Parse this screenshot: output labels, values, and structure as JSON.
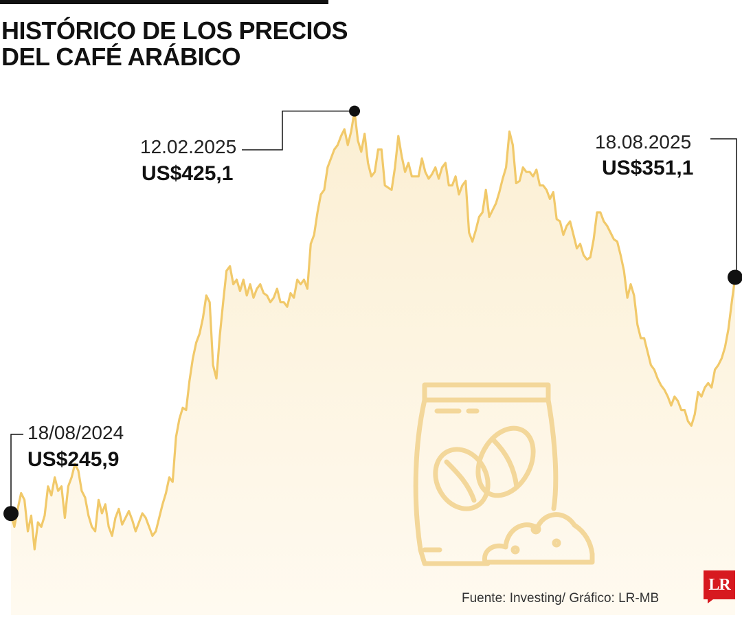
{
  "title": "HISTÓRICO DE LOS PRECIOS DEL CAFÉ ARÁBICO",
  "title_lines": [
    "HISTÓRICO DE LOS PRECIOS",
    "DEL CAFÉ ARÁBICO"
  ],
  "source": "Fuente: Investing/ Gráfico: LR-MB",
  "logo": {
    "text": "LR",
    "color": "#d71920"
  },
  "colors": {
    "line": "#f1c96a",
    "fill_top": "#fbefd3",
    "fill_bottom": "#fffaf0",
    "icon": "#f3d79a",
    "marker": "#111111"
  },
  "icon": "coffee-bag-icon",
  "annotations": {
    "start": {
      "date": "18/08/2024",
      "value": "US$245,9"
    },
    "peak": {
      "date": "12.02.2025",
      "value": "US$425,1"
    },
    "end": {
      "date": "18.08.2025",
      "value": "US$351,1"
    }
  },
  "chart_data": {
    "type": "area",
    "title": "HISTÓRICO DE LOS PRECIOS DEL CAFÉ ARÁBICO",
    "xlabel": "",
    "ylabel": "",
    "x_range": [
      "2024-08-18",
      "2025-08-18"
    ],
    "ylim": [
      212,
      436
    ],
    "grid": false,
    "legend": "none",
    "series": [
      {
        "values": [
          245.9,
          240,
          248,
          255,
          252,
          238,
          245,
          230,
          242,
          240,
          245,
          258,
          254,
          262,
          256,
          258,
          244,
          258,
          262,
          268,
          265,
          256,
          253,
          245,
          240,
          238,
          252,
          246,
          250,
          240,
          236,
          244,
          248,
          241,
          244,
          247,
          243,
          238,
          242,
          246,
          244,
          240,
          236,
          238,
          244,
          250,
          255,
          262,
          260,
          280,
          288,
          293,
          292,
          305,
          315,
          322,
          326,
          333,
          343,
          340,
          312,
          306,
          325,
          340,
          354,
          356,
          348,
          350,
          345,
          350,
          343,
          348,
          342,
          346,
          348,
          344,
          343,
          340,
          342,
          346,
          340,
          340,
          338,
          344,
          342,
          350,
          348,
          350,
          346,
          366,
          370,
          380,
          388,
          390,
          400,
          404,
          408,
          410,
          414,
          417,
          410,
          416,
          425.1,
          412,
          407,
          415,
          402,
          396,
          398,
          408,
          408,
          392,
          391,
          390,
          400,
          414,
          405,
          398,
          402,
          396,
          396,
          396,
          404,
          398,
          395,
          397,
          400,
          395,
          400,
          402,
          392,
          392,
          396,
          388,
          392,
          394,
          371,
          367,
          372,
          378,
          380,
          390,
          378,
          381,
          384,
          389,
          395,
          400,
          416,
          410,
          393,
          394,
          400,
          398,
          398,
          396,
          399,
          392,
          392,
          390,
          386,
          389,
          377,
          376,
          370,
          374,
          376,
          370,
          364,
          366,
          361,
          359,
          360,
          368,
          380,
          380,
          376,
          374,
          371,
          368,
          367,
          361,
          354,
          342,
          348,
          343,
          330,
          324,
          324,
          318,
          312,
          310,
          306,
          303,
          301,
          298,
          294,
          298,
          296,
          292,
          292,
          287,
          285,
          290,
          300,
          298,
          302,
          304,
          302,
          310,
          312,
          315,
          320,
          328,
          340,
          351.1
        ]
      }
    ]
  }
}
